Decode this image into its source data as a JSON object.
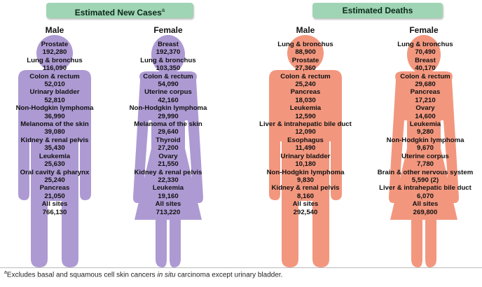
{
  "sections": {
    "new_cases": {
      "title": "Estimated New Cases",
      "title_marker": "a",
      "male_label": "Male",
      "female_label": "Female",
      "male": [
        {
          "site": "Prostate",
          "value": "192,280"
        },
        {
          "site": "Lung & bronchus",
          "value": "116,090"
        },
        {
          "site": "Colon & rectum",
          "value": "52,010"
        },
        {
          "site": "Urinary bladder",
          "value": "52,810"
        },
        {
          "site": "Non-Hodgkin lymphoma",
          "value": "36,990"
        },
        {
          "site": "Melanoma of the skin",
          "value": "39,080"
        },
        {
          "site": "Kidney & renal pelvis",
          "value": "35,430"
        },
        {
          "site": "Leukemia",
          "value": "25,630"
        },
        {
          "site": "Oral cavity & pharynx",
          "value": "25,240"
        },
        {
          "site": "Pancreas",
          "value": "21,050"
        },
        {
          "site": "All sites",
          "value": "766,130"
        }
      ],
      "female": [
        {
          "site": "Breast",
          "value": "192,370"
        },
        {
          "site": "Lung & bronchus",
          "value": "103,350"
        },
        {
          "site": "Colon & rectum",
          "value": "54,090"
        },
        {
          "site": "Uterine corpus",
          "value": "42,160"
        },
        {
          "site": "Non-Hodgkin lymphoma",
          "value": "29,990"
        },
        {
          "site": "Melanoma of the skin",
          "value": "29,640"
        },
        {
          "site": "Thyroid",
          "value": "27,200"
        },
        {
          "site": "Ovary",
          "value": "21,550"
        },
        {
          "site": "Kidney & renal pelvis",
          "value": "22,330"
        },
        {
          "site": "Leukemia",
          "value": "19,160"
        },
        {
          "site": "All sites",
          "value": "713,220"
        }
      ]
    },
    "deaths": {
      "title": "Estimated Deaths",
      "male_label": "Male",
      "female_label": "Female",
      "male": [
        {
          "site": "Lung & bronchus",
          "value": "88,900"
        },
        {
          "site": "Prostate",
          "value": "27,360"
        },
        {
          "site": "Colon & rectum",
          "value": "25,240"
        },
        {
          "site": "Pancreas",
          "value": "18,030"
        },
        {
          "site": "Leukemia",
          "value": "12,590"
        },
        {
          "site": "Liver & intrahepatic bile duct",
          "value": "12,090"
        },
        {
          "site": "Esophagus",
          "value": "11,490"
        },
        {
          "site": "Urinary bladder",
          "value": "10,180"
        },
        {
          "site": "Non-Hodgkin lymphoma",
          "value": "9,830"
        },
        {
          "site": "Kidney & renal pelvis",
          "value": "8,160"
        },
        {
          "site": "All sites",
          "value": "292,540"
        }
      ],
      "female": [
        {
          "site": "Lung & bronchus",
          "value": "70,490"
        },
        {
          "site": "Breast",
          "value": "40,170"
        },
        {
          "site": "Colon & rectum",
          "value": "29,680"
        },
        {
          "site": "Pancreas",
          "value": "17,210"
        },
        {
          "site": "Ovary",
          "value": "14,600"
        },
        {
          "site": "Leukemia",
          "value": "9,280"
        },
        {
          "site": "Non-Hodgkin lymphoma",
          "value": "9,670"
        },
        {
          "site": "Uterine corpus",
          "value": "7,780"
        },
        {
          "site": "Brain & other nervous system",
          "value": "5,590 (2)"
        },
        {
          "site": "Liver & intrahepatic bile duct",
          "value": "6,070"
        },
        {
          "site": "All sites",
          "value": "269,800"
        }
      ]
    }
  },
  "footnote": {
    "marker": "a",
    "before": "Excludes basal and squamous cell skin cancers ",
    "italic": "in situ",
    "after": " carcinoma except urinary bladder."
  },
  "colors": {
    "new_cases_figure": "#ad9ad3",
    "deaths_figure": "#f2977e",
    "banner": "#9fd4b4"
  }
}
